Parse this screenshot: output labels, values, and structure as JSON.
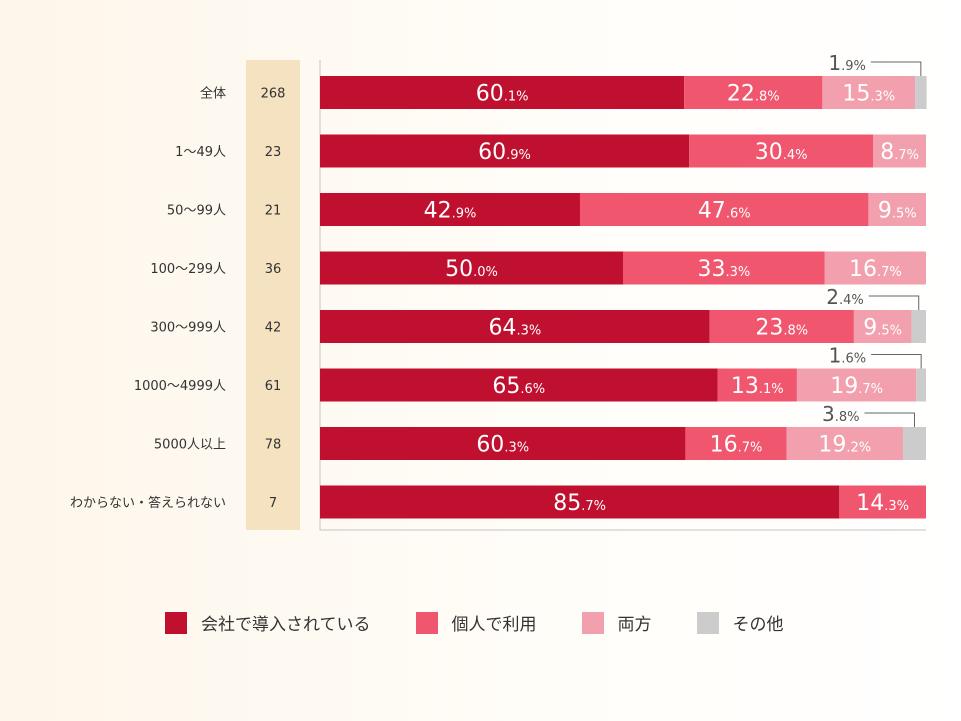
{
  "chart_data": {
    "type": "bar",
    "orientation": "horizontal",
    "stacked": true,
    "normalized": true,
    "categories": [
      "全体",
      "1〜49人",
      "50〜99人",
      "100〜299人",
      "300〜999人",
      "1000〜4999人",
      "5000人以上",
      "わからない・答えられない"
    ],
    "counts": [
      "268",
      "23",
      "21",
      "36",
      "42",
      "61",
      "78",
      "7"
    ],
    "series": [
      {
        "name": "会社で導入されている",
        "color": "#c0102f",
        "values": [
          60.1,
          60.9,
          42.9,
          50.0,
          64.3,
          65.6,
          60.3,
          85.7
        ]
      },
      {
        "name": "個人で利用",
        "color": "#f0566e",
        "values": [
          22.8,
          30.4,
          47.6,
          33.3,
          23.8,
          13.1,
          16.7,
          14.3
        ]
      },
      {
        "name": "両方",
        "color": "#f2a0ad",
        "values": [
          15.3,
          8.7,
          9.5,
          16.7,
          9.5,
          19.7,
          19.2,
          0
        ]
      },
      {
        "name": "その他",
        "color": "#cccccc",
        "values": [
          1.9,
          0,
          0,
          0,
          2.4,
          1.6,
          3.8,
          0
        ]
      }
    ],
    "value_unit": "%",
    "xlim": [
      0,
      100
    ],
    "legend_position": "bottom"
  }
}
